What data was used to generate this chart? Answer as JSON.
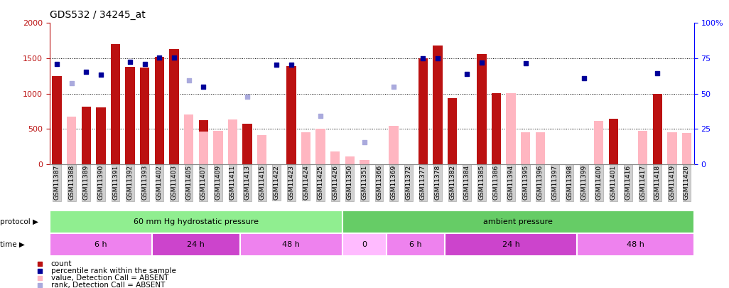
{
  "title": "GDS532 / 34245_at",
  "categories": [
    "GSM11387",
    "GSM11388",
    "GSM11389",
    "GSM11390",
    "GSM11391",
    "GSM11392",
    "GSM11393",
    "GSM11402",
    "GSM11403",
    "GSM11405",
    "GSM11407",
    "GSM11409",
    "GSM11411",
    "GSM11413",
    "GSM11415",
    "GSM11422",
    "GSM11423",
    "GSM11424",
    "GSM11425",
    "GSM11426",
    "GSM11350",
    "GSM11351",
    "GSM11366",
    "GSM11369",
    "GSM11372",
    "GSM11377",
    "GSM11378",
    "GSM11382",
    "GSM11384",
    "GSM11385",
    "GSM11386",
    "GSM11394",
    "GSM11395",
    "GSM11396",
    "GSM11397",
    "GSM11398",
    "GSM11399",
    "GSM11400",
    "GSM11401",
    "GSM11416",
    "GSM11417",
    "GSM11418",
    "GSM11419",
    "GSM11420"
  ],
  "count_values": [
    1250,
    0,
    810,
    800,
    1700,
    1380,
    1370,
    1520,
    1630,
    0,
    620,
    0,
    0,
    570,
    0,
    0,
    1390,
    0,
    0,
    0,
    0,
    0,
    0,
    0,
    0,
    1500,
    1680,
    940,
    0,
    1560,
    1010,
    0,
    0,
    0,
    0,
    0,
    0,
    0,
    640,
    0,
    0,
    1000,
    0,
    0
  ],
  "absent_value": [
    0,
    670,
    0,
    0,
    0,
    0,
    0,
    0,
    0,
    700,
    460,
    470,
    630,
    0,
    410,
    0,
    0,
    450,
    500,
    180,
    110,
    60,
    0,
    540,
    0,
    0,
    0,
    0,
    0,
    0,
    0,
    1010,
    450,
    450,
    0,
    0,
    0,
    610,
    0,
    0,
    470,
    0,
    450,
    440
  ],
  "rank_present": [
    1420,
    0,
    1310,
    1270,
    0,
    1450,
    1420,
    1510,
    1510,
    0,
    1100,
    0,
    0,
    0,
    0,
    1410,
    1410,
    0,
    0,
    0,
    0,
    0,
    0,
    0,
    0,
    1500,
    1500,
    0,
    1280,
    1440,
    0,
    0,
    1430,
    0,
    0,
    0,
    1220,
    0,
    0,
    0,
    0,
    1290,
    0,
    0
  ],
  "rank_absent": [
    0,
    1150,
    0,
    0,
    0,
    0,
    0,
    0,
    0,
    1190,
    0,
    0,
    0,
    960,
    0,
    0,
    0,
    0,
    680,
    0,
    0,
    310,
    0,
    1100,
    0,
    0,
    0,
    0,
    0,
    0,
    0,
    0,
    0,
    0,
    0,
    0,
    0,
    0,
    0,
    0,
    0,
    0,
    0,
    0
  ],
  "protocol_groups": [
    {
      "label": "60 mm Hg hydrostatic pressure",
      "start": 0,
      "end": 20,
      "color": "#90EE90"
    },
    {
      "label": "ambient pressure",
      "start": 20,
      "end": 44,
      "color": "#66CC66"
    }
  ],
  "time_groups": [
    {
      "label": "6 h",
      "start": 0,
      "end": 7,
      "color": "#EE82EE"
    },
    {
      "label": "24 h",
      "start": 7,
      "end": 13,
      "color": "#CC44CC"
    },
    {
      "label": "48 h",
      "start": 13,
      "end": 20,
      "color": "#EE82EE"
    },
    {
      "label": "0",
      "start": 20,
      "end": 23,
      "color": "#FFBBFF"
    },
    {
      "label": "6 h",
      "start": 23,
      "end": 27,
      "color": "#EE82EE"
    },
    {
      "label": "24 h",
      "start": 27,
      "end": 36,
      "color": "#CC44CC"
    },
    {
      "label": "48 h",
      "start": 36,
      "end": 44,
      "color": "#EE82EE"
    }
  ],
  "ylim": [
    0,
    2000
  ],
  "y_left_ticks": [
    0,
    500,
    1000,
    1500,
    2000
  ],
  "y_right_ticks": [
    0,
    25,
    50,
    75,
    100
  ],
  "bar_color_present": "#BB1111",
  "bar_color_absent": "#FFB6C1",
  "dot_color_present": "#000099",
  "dot_color_absent": "#AAAADD",
  "bg_color": "#FFFFFF",
  "title_fontsize": 10,
  "tick_fontsize": 6.5,
  "label_fontsize": 8
}
